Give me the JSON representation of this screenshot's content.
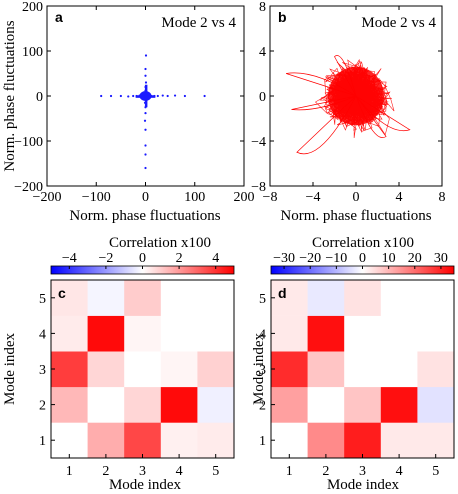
{
  "chart_data": [
    {
      "panel": "a",
      "type": "scatter",
      "title": "Mode 2 vs 4",
      "xlabel": "Norm. phase fluctuations",
      "ylabel": "Norm. phase fluctuations",
      "xlim": [
        -200,
        200
      ],
      "ylim": [
        -200,
        200
      ],
      "xticks": [
        -200,
        -100,
        0,
        100,
        200
      ],
      "yticks": [
        -200,
        -100,
        0,
        100,
        200
      ],
      "color": "#1a1aff",
      "description_points": [
        [
          0,
          0
        ],
        [
          1,
          -1
        ],
        [
          -1,
          1
        ],
        [
          2,
          0
        ],
        [
          0,
          2
        ],
        [
          -2,
          -1
        ],
        [
          3,
          1
        ],
        [
          -3,
          0
        ],
        [
          0,
          -3
        ],
        [
          1,
          4
        ],
        [
          -1,
          -4
        ],
        [
          5,
          0
        ],
        [
          -5,
          1
        ],
        [
          8,
          0
        ],
        [
          -8,
          -1
        ],
        [
          12,
          0
        ],
        [
          -12,
          1
        ],
        [
          18,
          0
        ],
        [
          -18,
          0
        ],
        [
          25,
          0
        ],
        [
          -25,
          0
        ],
        [
          35,
          1
        ],
        [
          -35,
          -1
        ],
        [
          45,
          0
        ],
        [
          -50,
          0
        ],
        [
          60,
          1
        ],
        [
          -70,
          0
        ],
        [
          80,
          0
        ],
        [
          -90,
          0
        ],
        [
          120,
          0
        ],
        [
          0,
          6
        ],
        [
          1,
          -8
        ],
        [
          0,
          12
        ],
        [
          -1,
          -15
        ],
        [
          0,
          20
        ],
        [
          0,
          -25
        ],
        [
          1,
          30
        ],
        [
          0,
          -38
        ],
        [
          0,
          45
        ],
        [
          -1,
          -55
        ],
        [
          0,
          60
        ],
        [
          0,
          -75
        ],
        [
          1,
          90
        ],
        [
          0,
          -110
        ],
        [
          0,
          -130
        ],
        [
          0,
          -160
        ]
      ]
    },
    {
      "panel": "b",
      "type": "line",
      "title": "Mode 2 vs 4",
      "xlabel": "Norm. phase fluctuations",
      "ylabel": "",
      "xlim": [
        -8,
        8
      ],
      "ylim": [
        -8,
        8
      ],
      "xticks": [
        -8,
        -4,
        0,
        4,
        8
      ],
      "yticks": [
        -8,
        -4,
        0,
        4,
        8
      ],
      "color": "#ff0000"
    },
    {
      "panel": "c",
      "type": "heatmap",
      "colorbar_label": "Correlation x100",
      "colorbar_ticks": [
        -4,
        -2,
        0,
        2,
        4
      ],
      "clim": [
        -5,
        5
      ],
      "xlabel": "Mode index",
      "ylabel": "Mode index",
      "x": [
        1,
        2,
        3,
        4,
        5
      ],
      "y": [
        1,
        2,
        3,
        4,
        5
      ],
      "z": [
        [
          0,
          1.6,
          3.6,
          0.3,
          0.4
        ],
        [
          1.4,
          0,
          0.8,
          4.8,
          -0.3
        ],
        [
          3.8,
          0.8,
          0,
          0.2,
          0.9
        ],
        [
          0.4,
          4.8,
          0.2,
          0,
          0
        ],
        [
          0.5,
          -0.2,
          1.0,
          0,
          0
        ]
      ]
    },
    {
      "panel": "d",
      "type": "heatmap",
      "colorbar_label": "Correlation x100",
      "colorbar_ticks": [
        -30,
        -20,
        -10,
        0,
        10,
        20,
        30
      ],
      "clim": [
        -35,
        35
      ],
      "xlabel": "Mode index",
      "ylabel": "Mode index",
      "x": [
        1,
        2,
        3,
        4,
        5
      ],
      "y": [
        1,
        2,
        3,
        4,
        5
      ],
      "z": [
        [
          0,
          16,
          31,
          3,
          3
        ],
        [
          13,
          0,
          8,
          33,
          -4
        ],
        [
          29,
          8,
          0,
          0,
          4
        ],
        [
          3,
          33,
          0,
          0,
          0
        ],
        [
          3,
          -3,
          4,
          0,
          0
        ]
      ]
    }
  ]
}
